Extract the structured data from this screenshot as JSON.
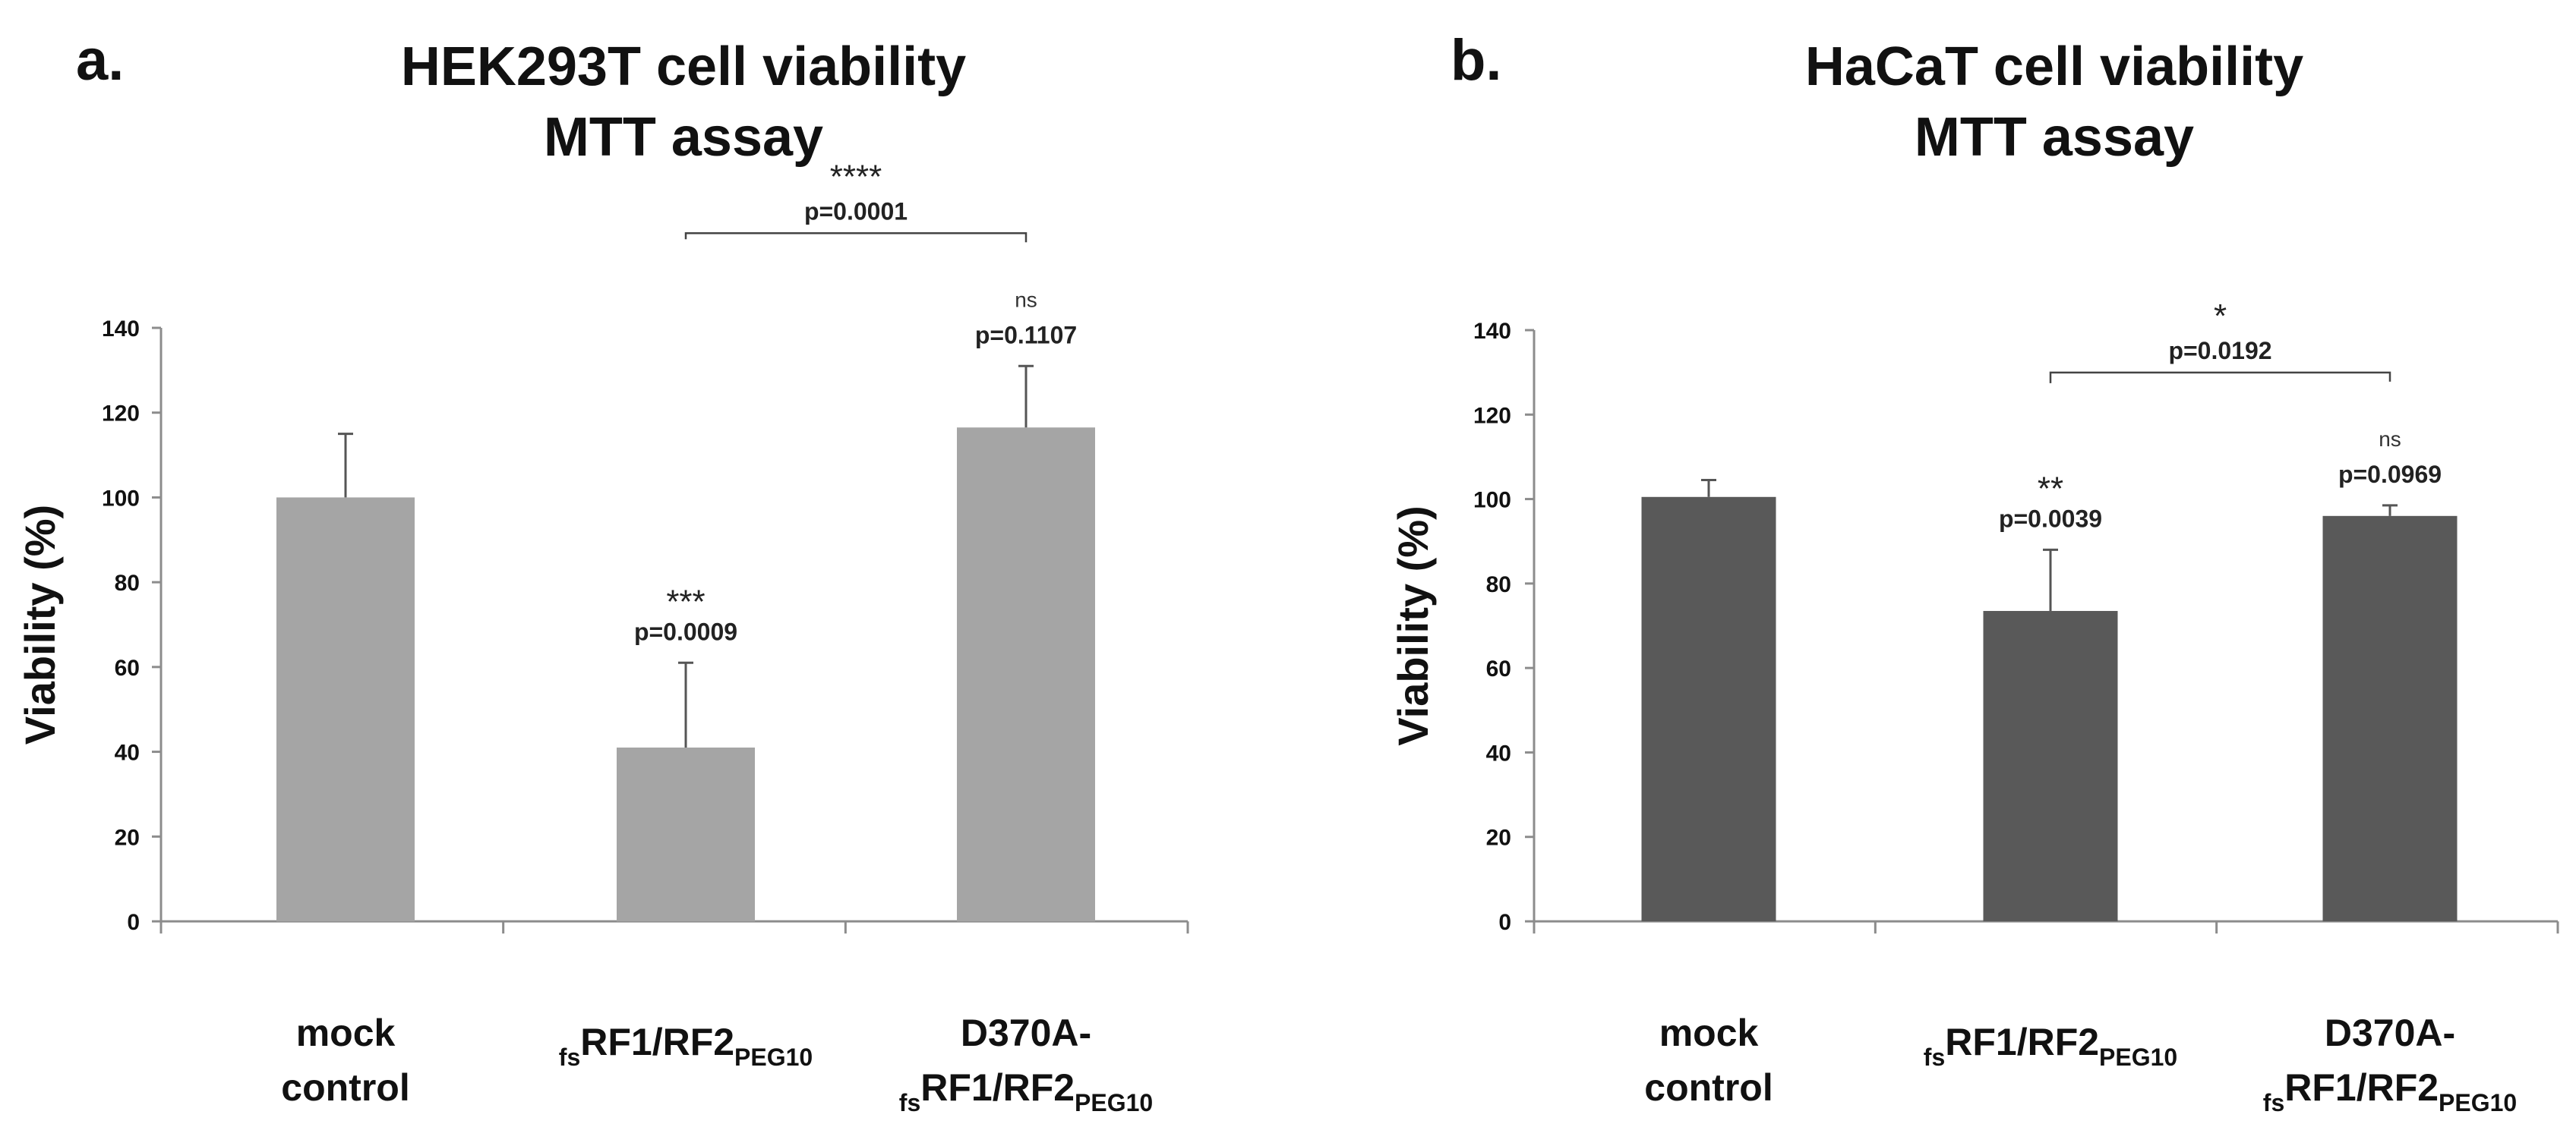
{
  "chart_data": [
    {
      "panel": "a.",
      "type": "bar",
      "title": [
        "HEK293T cell viability",
        "MTT assay"
      ],
      "ylabel": "Viability (%)",
      "xlabel": "",
      "ylim": [
        0,
        140
      ],
      "yticks": [
        0,
        20,
        40,
        60,
        80,
        100,
        120,
        140
      ],
      "color": "#a5a5a5",
      "categories": [
        {
          "lines": [
            {
              "text": "mock"
            },
            {
              "text": "control"
            }
          ]
        },
        {
          "lines": [
            {
              "pre": "fs",
              "main": "RF1/RF2",
              "post": "PEG10"
            }
          ]
        },
        {
          "lines": [
            {
              "text": "D370A-"
            },
            {
              "pre": "fs",
              "main": "RF1/RF2",
              "post": "PEG10"
            }
          ]
        }
      ],
      "values": [
        100,
        41,
        116.5
      ],
      "errors": [
        15,
        20,
        14.5
      ],
      "bar_annotations": [
        null,
        {
          "stars": "***",
          "p": "p=0.0009"
        },
        {
          "stars": "ns",
          "p": "p=0.1107"
        }
      ],
      "comparison": {
        "from": 1,
        "to": 2,
        "stars": "****",
        "p": "p=0.0001"
      }
    },
    {
      "panel": "b.",
      "type": "bar",
      "title": [
        "HaCaT cell viability",
        "MTT assay"
      ],
      "ylabel": "Viability (%)",
      "xlabel": "",
      "ylim": [
        0,
        140
      ],
      "yticks": [
        0,
        20,
        40,
        60,
        80,
        100,
        120,
        140
      ],
      "color": "#595959",
      "categories": [
        {
          "lines": [
            {
              "text": "mock"
            },
            {
              "text": "control"
            }
          ]
        },
        {
          "lines": [
            {
              "pre": "fs",
              "main": "RF1/RF2",
              "post": "PEG10"
            }
          ]
        },
        {
          "lines": [
            {
              "text": "D370A-"
            },
            {
              "pre": "fs",
              "main": "RF1/RF2",
              "post": "PEG10"
            }
          ]
        }
      ],
      "values": [
        100.5,
        73.5,
        96
      ],
      "errors": [
        4,
        14.5,
        2.5
      ],
      "bar_annotations": [
        null,
        {
          "stars": "**",
          "p": "p=0.0039"
        },
        {
          "stars": "ns",
          "p": "p=0.0969"
        }
      ],
      "comparison": {
        "from": 1,
        "to": 2,
        "stars": "*",
        "p": "p=0.0192"
      }
    }
  ]
}
